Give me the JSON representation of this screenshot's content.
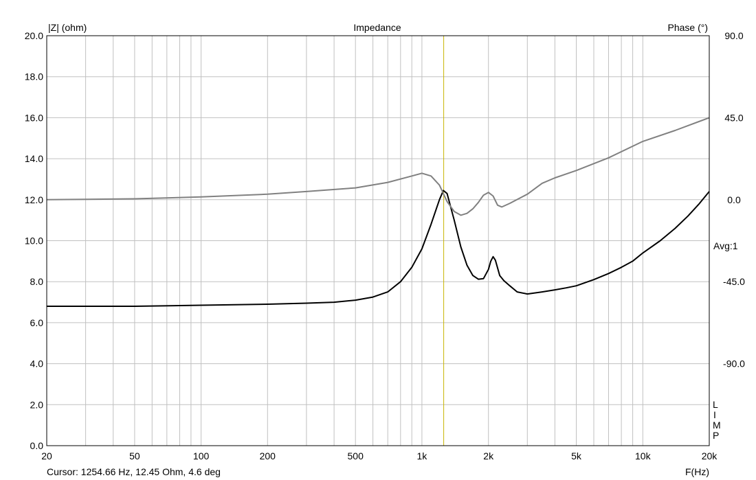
{
  "chart_data": {
    "type": "line",
    "title": "Impedance",
    "ylabel": "|Z| (ohm)",
    "y2label": "Phase (°)",
    "xlabel": "F(Hz)",
    "x_scale": "log",
    "xlim": [
      20,
      20000
    ],
    "ylim": [
      0,
      20
    ],
    "y2lim": [
      -135,
      90
    ],
    "grid": true,
    "x_ticks": [
      {
        "value": 20,
        "label": "20"
      },
      {
        "value": 50,
        "label": "50"
      },
      {
        "value": 100,
        "label": "100"
      },
      {
        "value": 200,
        "label": "200"
      },
      {
        "value": 500,
        "label": "500"
      },
      {
        "value": 1000,
        "label": "1k"
      },
      {
        "value": 2000,
        "label": "2k"
      },
      {
        "value": 5000,
        "label": "5k"
      },
      {
        "value": 10000,
        "label": "10k"
      },
      {
        "value": 20000,
        "label": "20k"
      }
    ],
    "y_ticks": [
      "0.0",
      "2.0",
      "4.0",
      "6.0",
      "8.0",
      "10.0",
      "12.0",
      "14.0",
      "16.0",
      "18.0",
      "20.0"
    ],
    "y2_ticks": [
      {
        "value": 90,
        "label": "90.0"
      },
      {
        "value": 45,
        "label": "45.0"
      },
      {
        "value": 0,
        "label": "0.0"
      },
      {
        "value": -45,
        "label": "-45.0"
      },
      {
        "value": -90,
        "label": "-90.0"
      }
    ],
    "avg_label": "Avg:1",
    "side_letters": [
      "L",
      "I",
      "M",
      "P"
    ],
    "cursor": {
      "frequency": 1254.66,
      "readout": "Cursor: 1254.66 Hz, 12.45 Ohm, 4.6 deg"
    },
    "series": [
      {
        "axis": "left",
        "color": "#000000",
        "points": [
          [
            20,
            6.8
          ],
          [
            50,
            6.8
          ],
          [
            100,
            6.85
          ],
          [
            200,
            6.9
          ],
          [
            300,
            6.95
          ],
          [
            400,
            7.0
          ],
          [
            500,
            7.1
          ],
          [
            600,
            7.25
          ],
          [
            700,
            7.5
          ],
          [
            800,
            8.0
          ],
          [
            900,
            8.7
          ],
          [
            1000,
            9.6
          ],
          [
            1100,
            10.8
          ],
          [
            1200,
            12.0
          ],
          [
            1250,
            12.45
          ],
          [
            1300,
            12.3
          ],
          [
            1400,
            11.0
          ],
          [
            1500,
            9.7
          ],
          [
            1600,
            8.8
          ],
          [
            1700,
            8.3
          ],
          [
            1800,
            8.12
          ],
          [
            1900,
            8.15
          ],
          [
            2000,
            8.6
          ],
          [
            2050,
            9.0
          ],
          [
            2100,
            9.22
          ],
          [
            2150,
            9.05
          ],
          [
            2250,
            8.3
          ],
          [
            2350,
            8.05
          ],
          [
            2500,
            7.8
          ],
          [
            2700,
            7.5
          ],
          [
            3000,
            7.4
          ],
          [
            3500,
            7.5
          ],
          [
            4000,
            7.6
          ],
          [
            4500,
            7.7
          ],
          [
            5000,
            7.8
          ],
          [
            6000,
            8.1
          ],
          [
            7000,
            8.4
          ],
          [
            8000,
            8.7
          ],
          [
            9000,
            9.0
          ],
          [
            10000,
            9.4
          ],
          [
            12000,
            10.0
          ],
          [
            14000,
            10.6
          ],
          [
            16000,
            11.2
          ],
          [
            18000,
            11.8
          ],
          [
            20000,
            12.4
          ]
        ]
      },
      {
        "axis": "right",
        "color": "#808080",
        "points": [
          [
            20,
            0.0
          ],
          [
            50,
            0.5
          ],
          [
            100,
            1.5
          ],
          [
            200,
            3.0
          ],
          [
            300,
            4.5
          ],
          [
            500,
            6.5
          ],
          [
            700,
            9.5
          ],
          [
            900,
            13.0
          ],
          [
            1000,
            14.5
          ],
          [
            1100,
            13.0
          ],
          [
            1200,
            8.0
          ],
          [
            1300,
            -1.0
          ],
          [
            1400,
            -6.5
          ],
          [
            1500,
            -8.5
          ],
          [
            1600,
            -7.5
          ],
          [
            1700,
            -5.0
          ],
          [
            1800,
            -1.5
          ],
          [
            1900,
            2.5
          ],
          [
            2000,
            4.0
          ],
          [
            2100,
            2.0
          ],
          [
            2200,
            -3.0
          ],
          [
            2300,
            -4.0
          ],
          [
            2500,
            -2.0
          ],
          [
            3000,
            3.0
          ],
          [
            3500,
            9.0
          ],
          [
            4000,
            12.0
          ],
          [
            5000,
            16.0
          ],
          [
            7000,
            23.0
          ],
          [
            10000,
            32.0
          ],
          [
            14000,
            38.0
          ],
          [
            20000,
            45.0
          ]
        ]
      }
    ]
  }
}
